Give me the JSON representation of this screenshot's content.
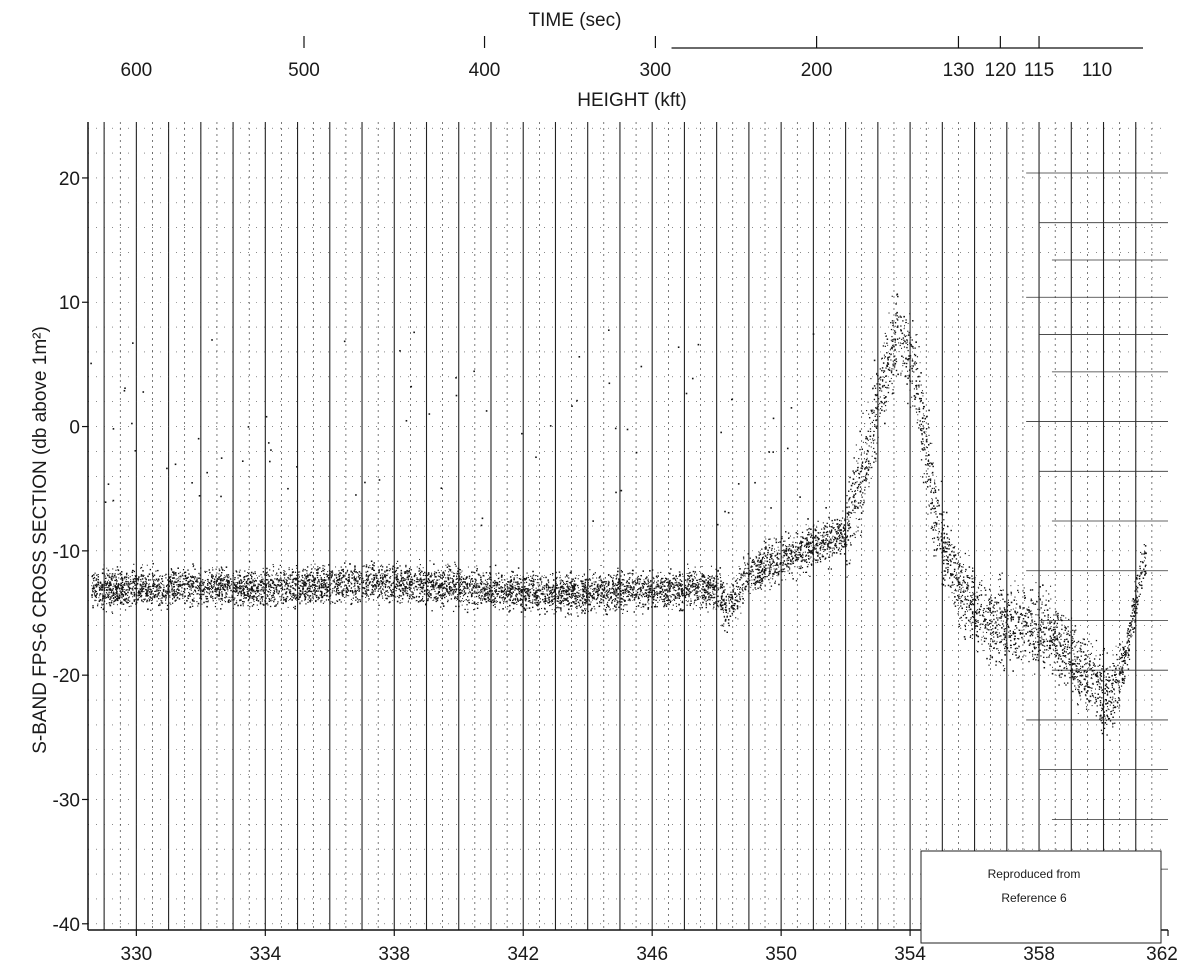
{
  "chart_data": {
    "type": "scatter",
    "title": "",
    "xlabel": "",
    "ylabel": "S-BAND FPS-6 CROSS SECTION (db above 1m²)",
    "xlim": [
      328.5,
      362
    ],
    "ylim": [
      -40.5,
      24.5
    ],
    "xticks": [
      330,
      334,
      338,
      342,
      346,
      350,
      354,
      358,
      362
    ],
    "yticks": [
      20,
      10,
      0,
      -10,
      -20,
      -30,
      -40
    ],
    "grid": true,
    "top_axis": {
      "time_title": "TIME (sec)",
      "height_title": "HEIGHT (kft)",
      "height_labels": [
        "600",
        "500",
        "400",
        "300",
        "200",
        "130",
        "120",
        "115",
        "110"
      ],
      "height_label_x": [
        330,
        335.2,
        340.8,
        346.1,
        351.1,
        355.5,
        356.8,
        358,
        359.8
      ]
    },
    "series": [
      {
        "trend": [
          {
            "x": 328.6,
            "y": -13
          },
          {
            "x": 330,
            "y": -13
          },
          {
            "x": 332,
            "y": -12.8
          },
          {
            "x": 334,
            "y": -13
          },
          {
            "x": 336,
            "y": -12.6
          },
          {
            "x": 338,
            "y": -12.5
          },
          {
            "x": 340,
            "y": -12.8
          },
          {
            "x": 342,
            "y": -13.3
          },
          {
            "x": 344,
            "y": -13.3
          },
          {
            "x": 346,
            "y": -13.1
          },
          {
            "x": 348,
            "y": -13
          },
          {
            "x": 348.3,
            "y": -14.5
          },
          {
            "x": 349,
            "y": -11.8
          },
          {
            "x": 350,
            "y": -10.5
          },
          {
            "x": 351,
            "y": -9.5
          },
          {
            "x": 352,
            "y": -8.5
          },
          {
            "x": 352.5,
            "y": -4
          },
          {
            "x": 353,
            "y": 2
          },
          {
            "x": 353.6,
            "y": 8
          },
          {
            "x": 354.2,
            "y": 4
          },
          {
            "x": 354.8,
            "y": -8
          },
          {
            "x": 355.5,
            "y": -13
          },
          {
            "x": 356.5,
            "y": -16
          },
          {
            "x": 357.5,
            "y": -15.5
          },
          {
            "x": 358.5,
            "y": -17
          },
          {
            "x": 359.5,
            "y": -20
          },
          {
            "x": 360.2,
            "y": -22
          },
          {
            "x": 360.7,
            "y": -18
          },
          {
            "x": 361.2,
            "y": -11
          }
        ]
      }
    ]
  },
  "annotation": {
    "line1": "Reproduced from",
    "line2": "Reference 6"
  }
}
